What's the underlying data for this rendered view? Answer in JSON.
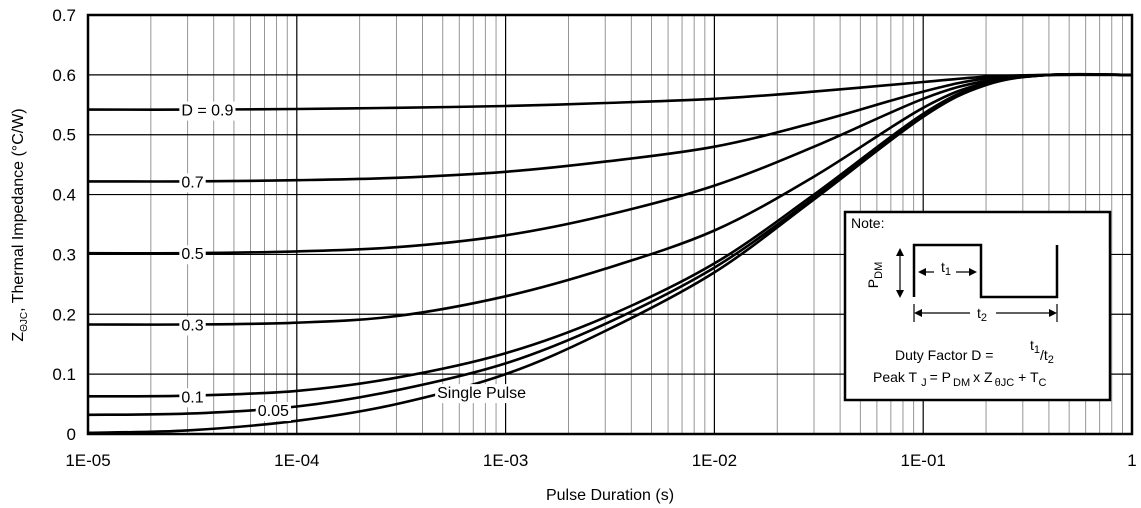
{
  "chart_data": {
    "type": "line",
    "xlabel": "Pulse Duration (s)",
    "ylabel": "Z",
    "ylabel_sub": "ΘJC",
    "ylabel_rest": ", Thermal Impedance (°C/W)",
    "x_scale": "log",
    "xlim": [
      1e-05,
      1
    ],
    "ylim": [
      0,
      0.7
    ],
    "grid": true,
    "x_ticks": [
      {
        "value": 1e-05,
        "label": "1E-05"
      },
      {
        "value": 0.0001,
        "label": "1E-04"
      },
      {
        "value": 0.001,
        "label": "1E-03"
      },
      {
        "value": 0.01,
        "label": "1E-02"
      },
      {
        "value": 0.1,
        "label": "1E-01"
      },
      {
        "value": 1,
        "label": "1"
      }
    ],
    "y_ticks": [
      {
        "value": 0,
        "label": "0"
      },
      {
        "value": 0.1,
        "label": "0.1"
      },
      {
        "value": 0.2,
        "label": "0.2"
      },
      {
        "value": 0.3,
        "label": "0.3"
      },
      {
        "value": 0.4,
        "label": "0.4"
      },
      {
        "value": 0.5,
        "label": "0.5"
      },
      {
        "value": 0.6,
        "label": "0.6"
      },
      {
        "value": 0.7,
        "label": "0.7"
      }
    ],
    "series": [
      {
        "name": "D = 0.9",
        "label_x": 2.8e-05,
        "label_y": 0.542,
        "points": [
          [
            1e-05,
            0.542
          ],
          [
            3e-05,
            0.542
          ],
          [
            0.0001,
            0.543
          ],
          [
            0.0003,
            0.545
          ],
          [
            0.001,
            0.548
          ],
          [
            0.003,
            0.553
          ],
          [
            0.01,
            0.56
          ],
          [
            0.03,
            0.572
          ],
          [
            0.1,
            0.588
          ],
          [
            0.2,
            0.597
          ],
          [
            0.4,
            0.6
          ],
          [
            1,
            0.6
          ]
        ]
      },
      {
        "name": "0.7",
        "label_x": 2.8e-05,
        "label_y": 0.422,
        "points": [
          [
            1e-05,
            0.422
          ],
          [
            3e-05,
            0.422
          ],
          [
            0.0001,
            0.424
          ],
          [
            0.0003,
            0.428
          ],
          [
            0.001,
            0.438
          ],
          [
            0.003,
            0.455
          ],
          [
            0.01,
            0.48
          ],
          [
            0.03,
            0.52
          ],
          [
            0.1,
            0.572
          ],
          [
            0.2,
            0.594
          ],
          [
            0.4,
            0.6
          ],
          [
            1,
            0.6
          ]
        ]
      },
      {
        "name": "0.5",
        "label_x": 2.8e-05,
        "label_y": 0.302,
        "points": [
          [
            1e-05,
            0.302
          ],
          [
            3e-05,
            0.302
          ],
          [
            0.0001,
            0.305
          ],
          [
            0.0003,
            0.312
          ],
          [
            0.001,
            0.332
          ],
          [
            0.003,
            0.365
          ],
          [
            0.01,
            0.415
          ],
          [
            0.03,
            0.48
          ],
          [
            0.1,
            0.56
          ],
          [
            0.2,
            0.59
          ],
          [
            0.4,
            0.6
          ],
          [
            1,
            0.6
          ]
        ]
      },
      {
        "name": "0.3",
        "label_x": 2.8e-05,
        "label_y": 0.183,
        "points": [
          [
            1e-05,
            0.183
          ],
          [
            3e-05,
            0.183
          ],
          [
            0.0001,
            0.186
          ],
          [
            0.0003,
            0.197
          ],
          [
            0.001,
            0.23
          ],
          [
            0.003,
            0.276
          ],
          [
            0.01,
            0.34
          ],
          [
            0.03,
            0.43
          ],
          [
            0.1,
            0.545
          ],
          [
            0.2,
            0.587
          ],
          [
            0.4,
            0.6
          ],
          [
            1,
            0.6
          ]
        ]
      },
      {
        "name": "0.1",
        "label_x": 2.8e-05,
        "label_y": 0.063,
        "points": [
          [
            1e-05,
            0.063
          ],
          [
            3e-05,
            0.064
          ],
          [
            0.0001,
            0.072
          ],
          [
            0.0003,
            0.094
          ],
          [
            0.001,
            0.135
          ],
          [
            0.003,
            0.195
          ],
          [
            0.01,
            0.285
          ],
          [
            0.03,
            0.4
          ],
          [
            0.1,
            0.535
          ],
          [
            0.2,
            0.585
          ],
          [
            0.4,
            0.6
          ],
          [
            1,
            0.6
          ]
        ]
      },
      {
        "name": "0.05",
        "label_x": 6.5e-05,
        "label_y": 0.04,
        "points": [
          [
            1e-05,
            0.032
          ],
          [
            3e-05,
            0.034
          ],
          [
            0.0001,
            0.046
          ],
          [
            0.0003,
            0.073
          ],
          [
            0.001,
            0.118
          ],
          [
            0.003,
            0.184
          ],
          [
            0.01,
            0.278
          ],
          [
            0.03,
            0.395
          ],
          [
            0.1,
            0.532
          ],
          [
            0.2,
            0.584
          ],
          [
            0.4,
            0.6
          ],
          [
            1,
            0.6
          ]
        ]
      },
      {
        "name": "Single Pulse",
        "label_x": 0.00047,
        "label_y": 0.07,
        "points": [
          [
            1e-05,
            0.002
          ],
          [
            3e-05,
            0.006
          ],
          [
            0.0001,
            0.022
          ],
          [
            0.0003,
            0.05
          ],
          [
            0.001,
            0.1
          ],
          [
            0.003,
            0.172
          ],
          [
            0.01,
            0.27
          ],
          [
            0.03,
            0.392
          ],
          [
            0.1,
            0.53
          ],
          [
            0.2,
            0.583
          ],
          [
            0.4,
            0.6
          ],
          [
            1,
            0.6
          ]
        ]
      }
    ]
  },
  "note": {
    "title": "Note:",
    "pdm_main": "P",
    "pdm_sub": "DM",
    "t1_main": "t",
    "t1_sub": "1",
    "t2_main": "t",
    "t2_sub": "2",
    "duty_text": "Duty Factor D =",
    "duty_num": "t",
    "duty_num_sub": "1",
    "duty_den": "/t",
    "duty_den_sub": "2",
    "peak_text": "Peak T",
    "peak_j": "J",
    "peak_eq": "= P",
    "peak_dm": "DM",
    "peak_x": "x Z",
    "peak_theta": "θJC",
    "peak_plus": "+ T",
    "peak_c": "C"
  }
}
